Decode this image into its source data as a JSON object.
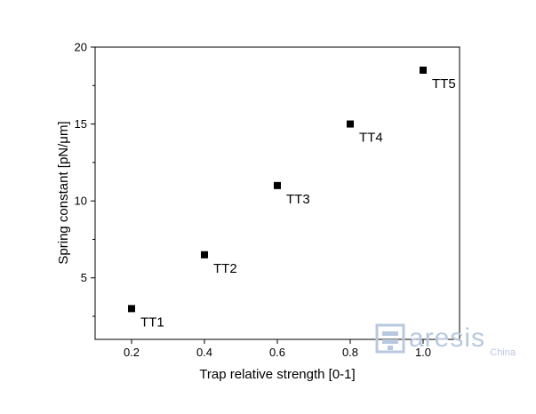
{
  "chart_data": {
    "type": "scatter",
    "title": "",
    "xlabel": "Trap relative strength [0-1]",
    "ylabel": "Spring constant [pN/μm]",
    "xlim": [
      0.1,
      1.1
    ],
    "ylim": [
      1,
      20
    ],
    "xticks": [
      0.2,
      0.4,
      0.6,
      0.8,
      1.0
    ],
    "xtick_labels": [
      "0.2",
      "0.4",
      "0.6",
      "0.8",
      "1.0"
    ],
    "yticks": [
      5,
      10,
      15,
      20
    ],
    "ytick_labels": [
      "5",
      "10",
      "15",
      "20"
    ],
    "grid": false,
    "marker": "square",
    "marker_color": "#000000",
    "points": [
      {
        "label": "TT1",
        "x": 0.2,
        "y": 3.0
      },
      {
        "label": "TT2",
        "x": 0.4,
        "y": 6.5
      },
      {
        "label": "TT3",
        "x": 0.6,
        "y": 11.0
      },
      {
        "label": "TT4",
        "x": 0.8,
        "y": 15.0
      },
      {
        "label": "TT5",
        "x": 1.0,
        "y": 18.5
      }
    ]
  },
  "watermark": {
    "brand": "aresis",
    "sub": "China",
    "color": "#b8c8de"
  }
}
